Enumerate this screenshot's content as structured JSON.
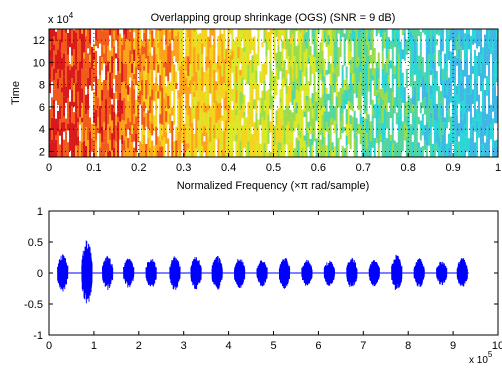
{
  "chart_data": [
    {
      "type": "heatmap",
      "title": "Overlapping group shrinkage (OGS) (SNR =  9 dB)",
      "xlabel": "Normalized Frequency  (×π rad/sample)",
      "ylabel": "Time",
      "xlim": [
        0,
        1
      ],
      "ylim": [
        1.5,
        13
      ],
      "x_ticks": [
        "0",
        "0.1",
        "0.2",
        "0.3",
        "0.4",
        "0.5",
        "0.6",
        "0.7",
        "0.8",
        "0.9",
        "1"
      ],
      "y_ticks": [
        "2",
        "4",
        "6",
        "8",
        "10",
        "12"
      ],
      "y_multiplier": {
        "base": "x 10",
        "exp": "4"
      },
      "colormap": "jet",
      "grid": "dotted",
      "colors": [
        "#d7191c",
        "#f05a1a",
        "#fca21b",
        "#f4d41e",
        "#d9e829",
        "#9bdc4c",
        "#55d5a0",
        "#2bd6d6",
        "#3fb8e6",
        "#ffffff"
      ]
    },
    {
      "type": "line",
      "xlim": [
        0,
        10
      ],
      "ylim": [
        -1,
        1
      ],
      "x_ticks": [
        "0",
        "1",
        "2",
        "3",
        "4",
        "5",
        "6",
        "7",
        "8",
        "9",
        "10"
      ],
      "y_ticks": [
        "-1",
        "-0.5",
        "0",
        "0.5",
        "1"
      ],
      "x_multiplier": {
        "base": "x 10",
        "exp": "5"
      },
      "line_color": "#0000ff",
      "series": [
        {
          "bursts": [
            {
              "x": 0.28,
              "a": 0.3
            },
            {
              "x": 0.82,
              "a": 0.55
            },
            {
              "x": 1.28,
              "a": 0.28
            },
            {
              "x": 1.75,
              "a": 0.25
            },
            {
              "x": 2.25,
              "a": 0.25
            },
            {
              "x": 2.78,
              "a": 0.28
            },
            {
              "x": 3.25,
              "a": 0.28
            },
            {
              "x": 3.72,
              "a": 0.28
            },
            {
              "x": 4.22,
              "a": 0.25
            },
            {
              "x": 4.72,
              "a": 0.22
            },
            {
              "x": 5.22,
              "a": 0.26
            },
            {
              "x": 5.72,
              "a": 0.22
            },
            {
              "x": 6.22,
              "a": 0.22
            },
            {
              "x": 6.72,
              "a": 0.26
            },
            {
              "x": 7.22,
              "a": 0.22
            },
            {
              "x": 7.72,
              "a": 0.3
            },
            {
              "x": 8.22,
              "a": 0.24
            },
            {
              "x": 8.72,
              "a": 0.2
            },
            {
              "x": 9.18,
              "a": 0.25
            }
          ],
          "baseline_end": 9.35
        }
      ]
    }
  ]
}
